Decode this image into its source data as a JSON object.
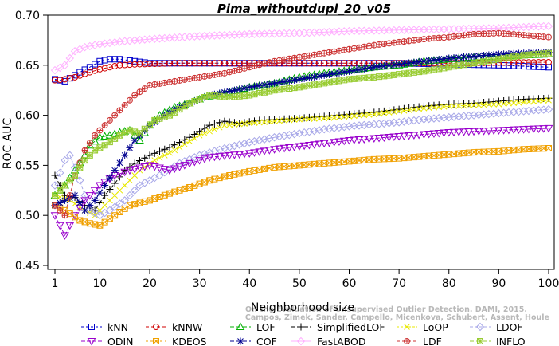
{
  "chart_data": {
    "type": "line",
    "title": "Pima_withoutdupl_20_v05",
    "xlabel": "Neighborhood size",
    "ylabel": "ROC AUC",
    "xlim": [
      1,
      100
    ],
    "ylim": [
      0.45,
      0.7
    ],
    "xticks": [
      1,
      10,
      20,
      30,
      40,
      50,
      60,
      70,
      80,
      90,
      100
    ],
    "yticks": [
      0.45,
      0.5,
      0.55,
      0.6,
      0.65,
      0.7
    ],
    "ytick_labels": [
      "0.45",
      "0.50",
      "0.55",
      "0.60",
      "0.65",
      "0.70"
    ],
    "grid": false,
    "legend_position": "bottom",
    "watermark": [
      "Campos, Zimek, Sander, Campello, Micenkova, Schubert, Assent, Houle",
      "On the Evaluation of Unsupervised Outlier Detection. DAMI, 2015."
    ],
    "series": [
      {
        "name": "kNN",
        "color": "#0000cc",
        "marker": "square",
        "dash": "3,3",
        "points": [
          [
            1,
            0.636
          ],
          [
            3,
            0.634
          ],
          [
            6,
            0.643
          ],
          [
            8,
            0.648
          ],
          [
            10,
            0.654
          ],
          [
            12,
            0.656
          ],
          [
            14,
            0.656
          ],
          [
            17,
            0.654
          ],
          [
            20,
            0.652
          ],
          [
            30,
            0.652
          ],
          [
            40,
            0.652
          ],
          [
            50,
            0.652
          ],
          [
            60,
            0.652
          ],
          [
            70,
            0.652
          ],
          [
            80,
            0.651
          ],
          [
            90,
            0.65
          ],
          [
            100,
            0.648
          ]
        ]
      },
      {
        "name": "kNNW",
        "color": "#d00000",
        "marker": "circle",
        "dash": "4,3",
        "points": [
          [
            1,
            0.635
          ],
          [
            3,
            0.636
          ],
          [
            5,
            0.638
          ],
          [
            8,
            0.643
          ],
          [
            10,
            0.646
          ],
          [
            14,
            0.65
          ],
          [
            18,
            0.651
          ],
          [
            25,
            0.652
          ],
          [
            40,
            0.652
          ],
          [
            60,
            0.652
          ],
          [
            80,
            0.652
          ],
          [
            100,
            0.653
          ]
        ]
      },
      {
        "name": "LOF",
        "color": "#00b000",
        "marker": "triangle-up",
        "dash": "5,3",
        "points": [
          [
            1,
            0.52
          ],
          [
            3,
            0.53
          ],
          [
            5,
            0.545
          ],
          [
            7,
            0.56
          ],
          [
            8,
            0.57
          ],
          [
            10,
            0.578
          ],
          [
            12,
            0.58
          ],
          [
            14,
            0.583
          ],
          [
            16,
            0.585
          ],
          [
            18,
            0.575
          ],
          [
            20,
            0.59
          ],
          [
            22,
            0.6
          ],
          [
            25,
            0.608
          ],
          [
            28,
            0.612
          ],
          [
            31,
            0.618
          ],
          [
            35,
            0.622
          ],
          [
            40,
            0.628
          ],
          [
            45,
            0.632
          ],
          [
            50,
            0.638
          ],
          [
            55,
            0.642
          ],
          [
            60,
            0.645
          ],
          [
            65,
            0.648
          ],
          [
            70,
            0.65
          ],
          [
            75,
            0.654
          ],
          [
            80,
            0.656
          ],
          [
            85,
            0.658
          ],
          [
            90,
            0.659
          ],
          [
            95,
            0.66
          ],
          [
            100,
            0.661
          ]
        ]
      },
      {
        "name": "SimplifiedLOF",
        "color": "#000000",
        "marker": "plus",
        "dash": "6,2",
        "points": [
          [
            1,
            0.54
          ],
          [
            3,
            0.52
          ],
          [
            5,
            0.518
          ],
          [
            7,
            0.51
          ],
          [
            9,
            0.505
          ],
          [
            11,
            0.52
          ],
          [
            13,
            0.532
          ],
          [
            15,
            0.545
          ],
          [
            17,
            0.552
          ],
          [
            20,
            0.56
          ],
          [
            24,
            0.568
          ],
          [
            28,
            0.578
          ],
          [
            32,
            0.59
          ],
          [
            35,
            0.594
          ],
          [
            38,
            0.592
          ],
          [
            42,
            0.595
          ],
          [
            46,
            0.596
          ],
          [
            50,
            0.597
          ],
          [
            55,
            0.599
          ],
          [
            60,
            0.601
          ],
          [
            65,
            0.603
          ],
          [
            70,
            0.606
          ],
          [
            75,
            0.609
          ],
          [
            80,
            0.611
          ],
          [
            85,
            0.612
          ],
          [
            90,
            0.614
          ],
          [
            95,
            0.616
          ],
          [
            100,
            0.617
          ]
        ]
      },
      {
        "name": "LoOP",
        "color": "#e8e800",
        "marker": "x",
        "dash": "3,2",
        "points": [
          [
            1,
            0.52
          ],
          [
            4,
            0.515
          ],
          [
            7,
            0.505
          ],
          [
            9,
            0.5
          ],
          [
            12,
            0.515
          ],
          [
            15,
            0.53
          ],
          [
            18,
            0.545
          ],
          [
            21,
            0.555
          ],
          [
            25,
            0.565
          ],
          [
            30,
            0.58
          ],
          [
            35,
            0.59
          ],
          [
            40,
            0.592
          ],
          [
            45,
            0.594
          ],
          [
            50,
            0.596
          ],
          [
            55,
            0.597
          ],
          [
            60,
            0.599
          ],
          [
            65,
            0.601
          ],
          [
            70,
            0.604
          ],
          [
            75,
            0.607
          ],
          [
            80,
            0.609
          ],
          [
            85,
            0.61
          ],
          [
            90,
            0.611
          ],
          [
            95,
            0.613
          ],
          [
            100,
            0.615
          ]
        ]
      },
      {
        "name": "LDOF",
        "color": "#a8a8e8",
        "marker": "diamond",
        "dash": "4,2",
        "points": [
          [
            1,
            0.53
          ],
          [
            3,
            0.555
          ],
          [
            4,
            0.56
          ],
          [
            6,
            0.535
          ],
          [
            8,
            0.505
          ],
          [
            10,
            0.5
          ],
          [
            12,
            0.505
          ],
          [
            15,
            0.515
          ],
          [
            18,
            0.53
          ],
          [
            22,
            0.54
          ],
          [
            26,
            0.552
          ],
          [
            30,
            0.56
          ],
          [
            35,
            0.567
          ],
          [
            40,
            0.573
          ],
          [
            45,
            0.578
          ],
          [
            50,
            0.582
          ],
          [
            55,
            0.586
          ],
          [
            60,
            0.589
          ],
          [
            65,
            0.591
          ],
          [
            70,
            0.593
          ],
          [
            75,
            0.596
          ],
          [
            80,
            0.598
          ],
          [
            85,
            0.6
          ],
          [
            90,
            0.602
          ],
          [
            95,
            0.604
          ],
          [
            100,
            0.606
          ]
        ]
      },
      {
        "name": "ODIN",
        "color": "#9900cc",
        "marker": "triangle-down",
        "dash": "5,2",
        "points": [
          [
            1,
            0.5
          ],
          [
            2,
            0.49
          ],
          [
            3,
            0.48
          ],
          [
            5,
            0.5
          ],
          [
            7,
            0.515
          ],
          [
            10,
            0.53
          ],
          [
            13,
            0.54
          ],
          [
            16,
            0.545
          ],
          [
            20,
            0.55
          ],
          [
            24,
            0.545
          ],
          [
            28,
            0.552
          ],
          [
            32,
            0.558
          ],
          [
            36,
            0.56
          ],
          [
            40,
            0.562
          ],
          [
            45,
            0.566
          ],
          [
            50,
            0.569
          ],
          [
            55,
            0.572
          ],
          [
            60,
            0.575
          ],
          [
            65,
            0.577
          ],
          [
            70,
            0.579
          ],
          [
            75,
            0.581
          ],
          [
            80,
            0.583
          ],
          [
            85,
            0.584
          ],
          [
            90,
            0.585
          ],
          [
            95,
            0.586
          ],
          [
            100,
            0.587
          ]
        ]
      },
      {
        "name": "KDEOS",
        "color": "#f0a000",
        "marker": "square-x",
        "dash": "3,3",
        "points": [
          [
            1,
            0.51
          ],
          [
            3,
            0.505
          ],
          [
            6,
            0.495
          ],
          [
            8,
            0.492
          ],
          [
            10,
            0.49
          ],
          [
            13,
            0.5
          ],
          [
            16,
            0.51
          ],
          [
            20,
            0.515
          ],
          [
            24,
            0.522
          ],
          [
            28,
            0.528
          ],
          [
            32,
            0.535
          ],
          [
            36,
            0.54
          ],
          [
            40,
            0.544
          ],
          [
            45,
            0.548
          ],
          [
            50,
            0.55
          ],
          [
            55,
            0.552
          ],
          [
            60,
            0.554
          ],
          [
            65,
            0.556
          ],
          [
            70,
            0.557
          ],
          [
            75,
            0.559
          ],
          [
            80,
            0.561
          ],
          [
            85,
            0.563
          ],
          [
            90,
            0.564
          ],
          [
            95,
            0.566
          ],
          [
            100,
            0.567
          ]
        ]
      },
      {
        "name": "COF",
        "color": "#000090",
        "marker": "asterisk",
        "dash": "5,3",
        "points": [
          [
            1,
            0.51
          ],
          [
            3,
            0.515
          ],
          [
            5,
            0.52
          ],
          [
            7,
            0.505
          ],
          [
            9,
            0.515
          ],
          [
            11,
            0.53
          ],
          [
            13,
            0.545
          ],
          [
            15,
            0.56
          ],
          [
            17,
            0.575
          ],
          [
            20,
            0.59
          ],
          [
            23,
            0.6
          ],
          [
            26,
            0.608
          ],
          [
            29,
            0.614
          ],
          [
            32,
            0.62
          ],
          [
            36,
            0.624
          ],
          [
            40,
            0.628
          ],
          [
            45,
            0.632
          ],
          [
            50,
            0.636
          ],
          [
            55,
            0.64
          ],
          [
            60,
            0.644
          ],
          [
            65,
            0.648
          ],
          [
            70,
            0.651
          ],
          [
            75,
            0.654
          ],
          [
            80,
            0.657
          ],
          [
            85,
            0.659
          ],
          [
            90,
            0.661
          ],
          [
            95,
            0.662
          ],
          [
            100,
            0.663
          ]
        ]
      },
      {
        "name": "FastABOD",
        "color": "#ffb0ff",
        "marker": "diamond",
        "dash": "",
        "points": [
          [
            1,
            0.645
          ],
          [
            3,
            0.65
          ],
          [
            5,
            0.664
          ],
          [
            7,
            0.668
          ],
          [
            10,
            0.671
          ],
          [
            15,
            0.674
          ],
          [
            20,
            0.676
          ],
          [
            30,
            0.679
          ],
          [
            40,
            0.681
          ],
          [
            50,
            0.682
          ],
          [
            60,
            0.684
          ],
          [
            70,
            0.685
          ],
          [
            80,
            0.686
          ],
          [
            90,
            0.687
          ],
          [
            100,
            0.689
          ]
        ]
      },
      {
        "name": "LDF",
        "color": "#cc3333",
        "marker": "circle-plus",
        "dash": "4,3",
        "points": [
          [
            1,
            0.51
          ],
          [
            3,
            0.5
          ],
          [
            5,
            0.54
          ],
          [
            7,
            0.565
          ],
          [
            9,
            0.58
          ],
          [
            11,
            0.59
          ],
          [
            14,
            0.605
          ],
          [
            17,
            0.62
          ],
          [
            20,
            0.63
          ],
          [
            25,
            0.634
          ],
          [
            30,
            0.638
          ],
          [
            35,
            0.642
          ],
          [
            40,
            0.648
          ],
          [
            45,
            0.654
          ],
          [
            50,
            0.658
          ],
          [
            55,
            0.662
          ],
          [
            60,
            0.666
          ],
          [
            65,
            0.67
          ],
          [
            70,
            0.673
          ],
          [
            75,
            0.676
          ],
          [
            80,
            0.678
          ],
          [
            85,
            0.681
          ],
          [
            90,
            0.682
          ],
          [
            95,
            0.68
          ],
          [
            100,
            0.678
          ]
        ]
      },
      {
        "name": "INFLO",
        "color": "#99cc33",
        "marker": "square-star",
        "dash": "5,3",
        "points": [
          [
            1,
            0.52
          ],
          [
            3,
            0.53
          ],
          [
            5,
            0.54
          ],
          [
            7,
            0.555
          ],
          [
            9,
            0.565
          ],
          [
            11,
            0.57
          ],
          [
            14,
            0.58
          ],
          [
            16,
            0.585
          ],
          [
            18,
            0.582
          ],
          [
            21,
            0.595
          ],
          [
            24,
            0.6
          ],
          [
            28,
            0.612
          ],
          [
            32,
            0.62
          ],
          [
            36,
            0.618
          ],
          [
            40,
            0.62
          ],
          [
            45,
            0.625
          ],
          [
            50,
            0.628
          ],
          [
            55,
            0.632
          ],
          [
            60,
            0.636
          ],
          [
            65,
            0.638
          ],
          [
            70,
            0.641
          ],
          [
            75,
            0.644
          ],
          [
            80,
            0.648
          ],
          [
            85,
            0.652
          ],
          [
            90,
            0.656
          ],
          [
            95,
            0.66
          ],
          [
            100,
            0.662
          ]
        ]
      }
    ]
  }
}
